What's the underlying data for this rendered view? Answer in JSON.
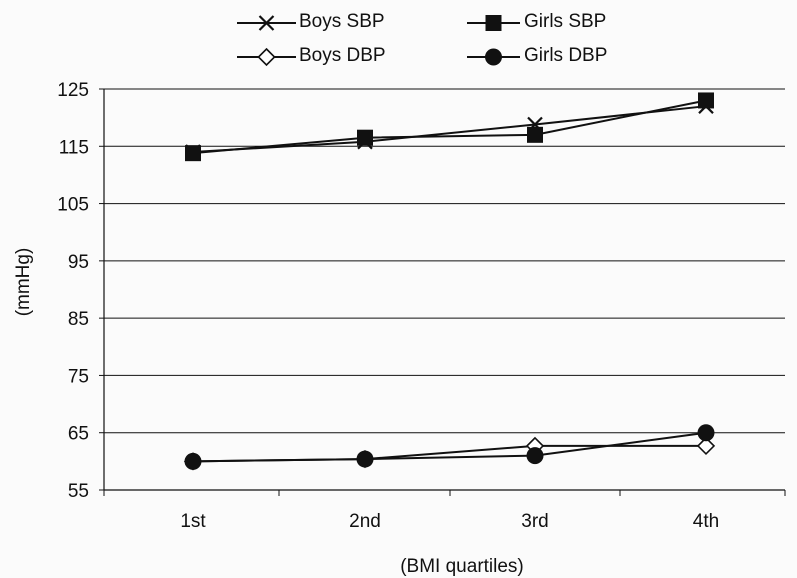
{
  "chart_data": {
    "type": "line",
    "title": "",
    "xlabel": "(BMI quartiles)",
    "ylabel": "(mmHg)",
    "categories": [
      "1st",
      "2nd",
      "3rd",
      "4th"
    ],
    "y_ticks": [
      125,
      115,
      105,
      95,
      85,
      75,
      65,
      55
    ],
    "ylim": [
      55,
      125
    ],
    "grid": "horizontal",
    "legend_position": "top",
    "series": [
      {
        "name": "Boys SBP",
        "values": [
          114,
          115.8,
          118.8,
          122
        ],
        "marker": "x",
        "color": "#111111"
      },
      {
        "name": "Girls SBP",
        "values": [
          113.8,
          116.5,
          117,
          123
        ],
        "marker": "square",
        "color": "#111111"
      },
      {
        "name": "Boys DBP",
        "values": [
          60,
          60.4,
          62.7,
          62.7
        ],
        "marker": "diamond",
        "color": "#111111"
      },
      {
        "name": "Girls DBP",
        "values": [
          60,
          60.4,
          61,
          65
        ],
        "marker": "circle",
        "color": "#111111"
      }
    ]
  },
  "colors": {
    "axis": "#111111",
    "grid": "#111111",
    "background": "#fbfbfb"
  }
}
